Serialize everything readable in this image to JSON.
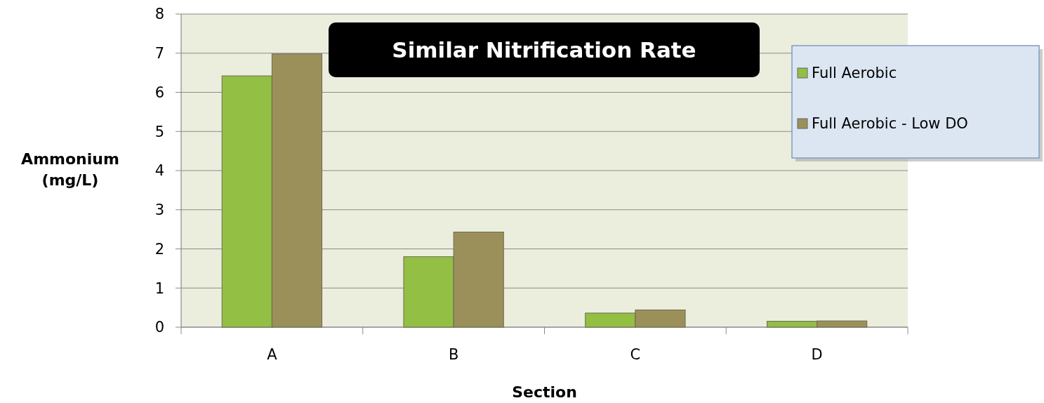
{
  "chart_data": {
    "type": "bar",
    "title": "Similar Nitrification Rate",
    "xlabel": "Section",
    "ylabel": "Ammonium (mg/L)",
    "categories": [
      "A",
      "B",
      "C",
      "D"
    ],
    "series": [
      {
        "name": "Full Aerobic",
        "color": "#93bf45",
        "values": [
          6.42,
          1.8,
          0.36,
          0.15
        ]
      },
      {
        "name": "Full Aerobic - Low DO",
        "color": "#9c905a",
        "values": [
          6.98,
          2.43,
          0.44,
          0.16
        ]
      }
    ],
    "ylim": [
      0,
      8
    ],
    "yticks": [
      0,
      1,
      2,
      3,
      4,
      5,
      6,
      7,
      8
    ],
    "grid": "y",
    "legend": "top right"
  }
}
